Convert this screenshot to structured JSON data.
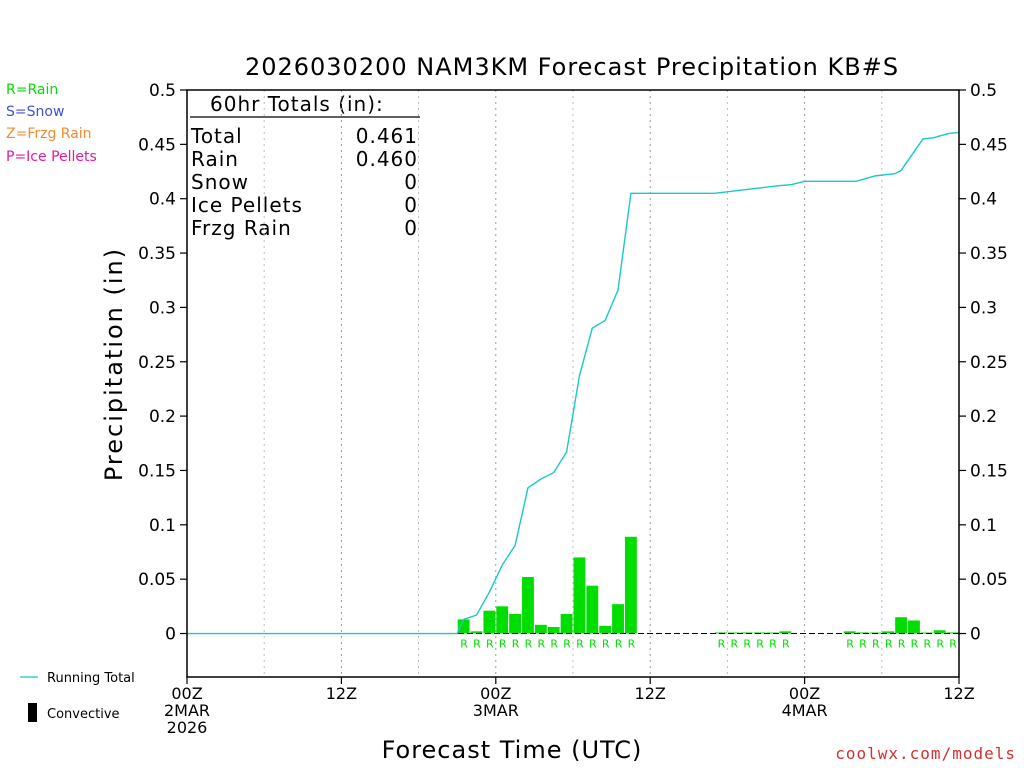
{
  "colors": {
    "rain": "#00dd00",
    "snow": "#3c50dc",
    "frzg": "#f08c32",
    "ice": "#e6189c",
    "running_total": "#19c8c8",
    "axis": "#000000",
    "watermark": "#d03030"
  },
  "precip_type_legend": [
    "R=Rain",
    "S=Snow",
    "Z=Frzg Rain",
    "P=Ice Pellets"
  ],
  "bottom_legend": {
    "running_total_label": "Running Total",
    "convective_label": "Convective"
  },
  "totals_box": {
    "title": "60hr Totals (in):",
    "rows": [
      {
        "label": "Total",
        "value": "0.461"
      },
      {
        "label": "Rain",
        "value": "0.460"
      },
      {
        "label": "Snow",
        "value": "0"
      },
      {
        "label": "Ice Pellets",
        "value": "0"
      },
      {
        "label": "Frzg Rain",
        "value": "0"
      }
    ]
  },
  "watermark": "coolwx.com/models",
  "chart_data": {
    "type": "bar",
    "title": "2026030200 NAM3KM Forecast Precipitation KB#S",
    "xlabel": "Forecast Time (UTC)",
    "ylabel": "Precipitation (in)",
    "ylim": [
      -0.04,
      0.5
    ],
    "yticks": [
      "0",
      "0.05",
      "0.1",
      "0.15",
      "0.2",
      "0.25",
      "0.3",
      "0.35",
      "0.4",
      "0.45",
      "0.5"
    ],
    "xlim_hours": [
      0,
      60
    ],
    "xticks": [
      {
        "hour": 0,
        "lines": [
          "00Z",
          "2MAR",
          "2026"
        ]
      },
      {
        "hour": 12,
        "lines": [
          "12Z"
        ]
      },
      {
        "hour": 24,
        "lines": [
          "00Z",
          "3MAR"
        ]
      },
      {
        "hour": 36,
        "lines": [
          "12Z"
        ]
      },
      {
        "hour": 48,
        "lines": [
          "00Z",
          "4MAR"
        ]
      },
      {
        "hour": 60,
        "lines": [
          "12Z"
        ]
      }
    ],
    "bars_rain": [
      {
        "hour": 22.0,
        "value": 0.013
      },
      {
        "hour": 23.0,
        "value": 0.002
      },
      {
        "hour": 24.0,
        "value": 0.021
      },
      {
        "hour": 25.0,
        "value": 0.025
      },
      {
        "hour": 26.0,
        "value": 0.018
      },
      {
        "hour": 27.0,
        "value": 0.052
      },
      {
        "hour": 28.0,
        "value": 0.008
      },
      {
        "hour": 29.0,
        "value": 0.006
      },
      {
        "hour": 30.0,
        "value": 0.018
      },
      {
        "hour": 31.0,
        "value": 0.07
      },
      {
        "hour": 32.0,
        "value": 0.044
      },
      {
        "hour": 33.0,
        "value": 0.007
      },
      {
        "hour": 34.0,
        "value": 0.027
      },
      {
        "hour": 35.0,
        "value": 0.089
      },
      {
        "hour": 42.0,
        "value": 0.001
      },
      {
        "hour": 43.0,
        "value": 0.0005
      },
      {
        "hour": 44.0,
        "value": 0.001
      },
      {
        "hour": 45.0,
        "value": 0.001
      },
      {
        "hour": 46.0,
        "value": 0.0005
      },
      {
        "hour": 47.0,
        "value": 0.002
      },
      {
        "hour": 52.0,
        "value": 0.002
      },
      {
        "hour": 53.0,
        "value": 0.001
      },
      {
        "hour": 54.0,
        "value": 0.0005
      },
      {
        "hour": 55.0,
        "value": 0.002
      },
      {
        "hour": 56.0,
        "value": 0.015
      },
      {
        "hour": 57.0,
        "value": 0.012
      },
      {
        "hour": 58.0,
        "value": 0.0005
      },
      {
        "hour": 59.0,
        "value": 0.003
      },
      {
        "hour": 60.0,
        "value": 0.001
      }
    ],
    "type_markers": [
      {
        "hour": 22,
        "text": "R"
      },
      {
        "hour": 23,
        "text": "R"
      },
      {
        "hour": 24,
        "text": "R"
      },
      {
        "hour": 25,
        "text": "R"
      },
      {
        "hour": 26,
        "text": "R"
      },
      {
        "hour": 27,
        "text": "R"
      },
      {
        "hour": 28,
        "text": "R"
      },
      {
        "hour": 29,
        "text": "R"
      },
      {
        "hour": 30,
        "text": "R"
      },
      {
        "hour": 31,
        "text": "R"
      },
      {
        "hour": 32,
        "text": "R"
      },
      {
        "hour": 33,
        "text": "R"
      },
      {
        "hour": 34,
        "text": "R"
      },
      {
        "hour": 35,
        "text": "R"
      },
      {
        "hour": 42,
        "text": "R"
      },
      {
        "hour": 43,
        "text": "R"
      },
      {
        "hour": 44,
        "text": "R"
      },
      {
        "hour": 45,
        "text": "R"
      },
      {
        "hour": 46,
        "text": "R"
      },
      {
        "hour": 47,
        "text": "R"
      },
      {
        "hour": 52,
        "text": "R"
      },
      {
        "hour": 53,
        "text": "R"
      },
      {
        "hour": 54,
        "text": "R"
      },
      {
        "hour": 55,
        "text": "R"
      },
      {
        "hour": 56,
        "text": "R"
      },
      {
        "hour": 57,
        "text": "R"
      },
      {
        "hour": 58,
        "text": "R"
      },
      {
        "hour": 59,
        "text": "R"
      },
      {
        "hour": 60,
        "text": "R"
      }
    ],
    "running_total": [
      {
        "hour": 0,
        "value": 0
      },
      {
        "hour": 21,
        "value": 0
      },
      {
        "hour": 21.5,
        "value": 0.013
      },
      {
        "hour": 22.5,
        "value": 0.017
      },
      {
        "hour": 23.5,
        "value": 0.038
      },
      {
        "hour": 24.5,
        "value": 0.063
      },
      {
        "hour": 25.5,
        "value": 0.081
      },
      {
        "hour": 26.5,
        "value": 0.134
      },
      {
        "hour": 27.5,
        "value": 0.142
      },
      {
        "hour": 28.5,
        "value": 0.148
      },
      {
        "hour": 29.5,
        "value": 0.167
      },
      {
        "hour": 30.5,
        "value": 0.237
      },
      {
        "hour": 31.5,
        "value": 0.281
      },
      {
        "hour": 32.5,
        "value": 0.288
      },
      {
        "hour": 33.5,
        "value": 0.316
      },
      {
        "hour": 34.5,
        "value": 0.405
      },
      {
        "hour": 41,
        "value": 0.405
      },
      {
        "hour": 46,
        "value": 0.412
      },
      {
        "hour": 47,
        "value": 0.413
      },
      {
        "hour": 48,
        "value": 0.416
      },
      {
        "hour": 52,
        "value": 0.416
      },
      {
        "hour": 53.5,
        "value": 0.421
      },
      {
        "hour": 55,
        "value": 0.423
      },
      {
        "hour": 55.5,
        "value": 0.426
      },
      {
        "hour": 56.5,
        "value": 0.443
      },
      {
        "hour": 57.2,
        "value": 0.455
      },
      {
        "hour": 58,
        "value": 0.456
      },
      {
        "hour": 59.2,
        "value": 0.46
      },
      {
        "hour": 60,
        "value": 0.461
      }
    ]
  }
}
